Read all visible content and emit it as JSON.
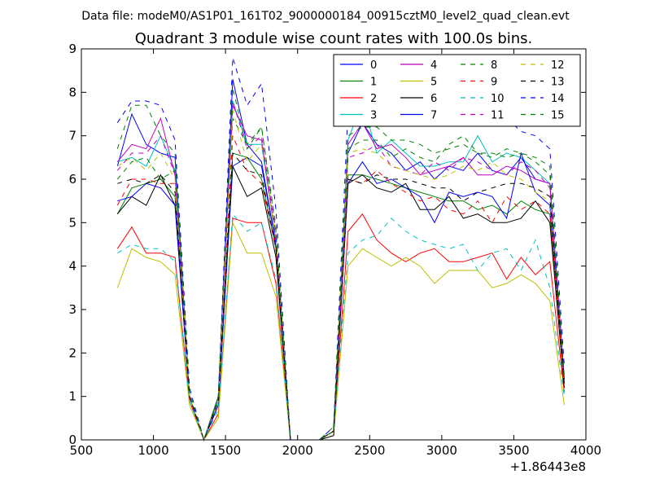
{
  "header": {
    "suptitle": "Data file: modeM0/AS1P01_161T02_9000000184_00915cztM0_level2_quad_clean.evt",
    "offset_label": "+1.86443e8"
  },
  "chart_data": {
    "type": "line",
    "title": "Quadrant 3 module wise count rates with 100.0s bins.",
    "xlabel": "",
    "ylabel": "",
    "xlim": [
      500,
      4000
    ],
    "ylim": [
      0,
      9
    ],
    "x_ticks": [
      "500",
      "1000",
      "1500",
      "2000",
      "2500",
      "3000",
      "3500",
      "4000"
    ],
    "y_ticks": [
      "0",
      "1",
      "2",
      "3",
      "4",
      "5",
      "6",
      "7",
      "8",
      "9"
    ],
    "x_offset": "+1.86443e8",
    "grid": false,
    "legend_position": "top-right",
    "legend_columns": 4,
    "x": [
      750,
      850,
      950,
      1050,
      1150,
      1250,
      1350,
      1450,
      1550,
      1650,
      1750,
      1850,
      1950,
      2050,
      2150,
      2250,
      2350,
      2450,
      2550,
      2650,
      2750,
      2850,
      2950,
      3050,
      3150,
      3250,
      3350,
      3450,
      3550,
      3650,
      3750,
      3850
    ],
    "series": [
      {
        "name": "0",
        "color": "#0000ff",
        "dash": "solid",
        "values": [
          6.3,
          7.5,
          6.8,
          6.6,
          6.5,
          1.0,
          0.0,
          1.0,
          8.3,
          6.8,
          6.4,
          4.5,
          0.0,
          0.0,
          0.0,
          0.2,
          6.6,
          7.3,
          6.8,
          6.6,
          6.2,
          6.4,
          6.0,
          6.3,
          6.2,
          6.6,
          6.2,
          6.1,
          6.5,
          6.0,
          5.9,
          1.4
        ]
      },
      {
        "name": "1",
        "color": "#008000",
        "dash": "solid",
        "values": [
          5.2,
          5.8,
          5.9,
          6.0,
          5.6,
          1.0,
          0.0,
          0.9,
          6.6,
          6.5,
          6.0,
          4.4,
          0.0,
          0.0,
          0.0,
          0.2,
          6.1,
          6.1,
          6.0,
          5.9,
          5.8,
          5.7,
          5.6,
          5.5,
          5.5,
          5.3,
          5.4,
          5.2,
          5.5,
          5.3,
          5.2,
          1.3
        ]
      },
      {
        "name": "2",
        "color": "#ff0000",
        "dash": "solid",
        "values": [
          4.4,
          4.9,
          4.3,
          4.3,
          4.2,
          0.9,
          0.0,
          0.6,
          5.1,
          5.0,
          5.0,
          3.6,
          0.0,
          0.0,
          0.0,
          0.2,
          4.8,
          5.2,
          4.6,
          4.3,
          4.1,
          4.3,
          4.4,
          4.1,
          4.1,
          4.2,
          4.3,
          3.7,
          4.2,
          3.8,
          4.1,
          1.1
        ]
      },
      {
        "name": "3",
        "color": "#00bfbf",
        "dash": "solid",
        "values": [
          6.4,
          6.5,
          6.3,
          7.0,
          6.2,
          1.0,
          0.0,
          1.0,
          7.8,
          6.8,
          6.8,
          4.6,
          0.0,
          0.0,
          0.0,
          0.2,
          6.9,
          7.8,
          6.6,
          6.9,
          6.6,
          6.3,
          6.3,
          6.4,
          6.4,
          7.0,
          6.4,
          6.6,
          6.5,
          6.2,
          5.9,
          1.3
        ]
      },
      {
        "name": "4",
        "color": "#bf00bf",
        "dash": "solid",
        "values": [
          6.4,
          6.8,
          6.7,
          7.4,
          6.1,
          1.0,
          0.0,
          1.0,
          7.7,
          7.0,
          6.9,
          4.6,
          0.0,
          0.0,
          0.0,
          0.2,
          6.8,
          7.3,
          6.7,
          6.8,
          6.5,
          6.1,
          6.2,
          6.3,
          6.5,
          6.1,
          6.1,
          6.3,
          6.2,
          6.0,
          5.9,
          1.4
        ]
      },
      {
        "name": "5",
        "color": "#bfbf00",
        "dash": "solid",
        "values": [
          3.5,
          4.4,
          4.2,
          4.1,
          3.8,
          0.8,
          0.0,
          0.5,
          5.0,
          4.3,
          4.3,
          3.3,
          0.0,
          0.0,
          0.0,
          0.1,
          4.0,
          4.4,
          4.2,
          4.0,
          4.2,
          4.0,
          3.6,
          3.9,
          3.9,
          3.9,
          3.5,
          3.6,
          3.8,
          3.6,
          3.2,
          0.8
        ]
      },
      {
        "name": "6",
        "color": "#000000",
        "dash": "solid",
        "values": [
          5.2,
          5.6,
          5.4,
          6.1,
          5.4,
          1.0,
          0.0,
          0.8,
          6.3,
          5.6,
          5.8,
          4.2,
          0.0,
          0.0,
          0.0,
          0.1,
          5.9,
          6.1,
          5.8,
          5.7,
          5.9,
          5.3,
          5.3,
          5.6,
          5.1,
          5.2,
          5.0,
          5.0,
          5.1,
          5.5,
          5.0,
          1.2
        ]
      },
      {
        "name": "7",
        "color": "#0000ff",
        "dash": "solid",
        "values": [
          5.5,
          5.6,
          5.9,
          5.8,
          5.4,
          1.0,
          0.0,
          0.8,
          6.3,
          6.5,
          6.3,
          4.5,
          0.0,
          0.0,
          0.0,
          0.2,
          5.9,
          6.4,
          5.9,
          6.0,
          5.8,
          5.6,
          5.0,
          5.7,
          5.6,
          5.7,
          5.6,
          5.1,
          6.6,
          5.7,
          5.4,
          1.4
        ]
      },
      {
        "name": "8",
        "color": "#008000",
        "dash": "dashed",
        "values": [
          6.0,
          6.4,
          6.5,
          6.0,
          6.2,
          1.0,
          0.0,
          1.0,
          7.4,
          6.8,
          7.2,
          4.8,
          0.0,
          0.0,
          0.0,
          0.3,
          6.7,
          6.9,
          6.9,
          6.5,
          6.7,
          6.5,
          6.4,
          6.8,
          7.0,
          6.6,
          6.5,
          6.7,
          6.6,
          6.5,
          6.3,
          1.5
        ]
      },
      {
        "name": "9",
        "color": "#ff0000",
        "dash": "dashed",
        "values": [
          5.4,
          6.0,
          6.0,
          5.9,
          5.9,
          1.0,
          0.0,
          0.9,
          7.0,
          6.2,
          5.9,
          4.4,
          0.0,
          0.0,
          0.0,
          0.2,
          6.0,
          5.9,
          6.2,
          5.9,
          5.7,
          5.5,
          5.6,
          5.3,
          5.2,
          5.5,
          5.0,
          5.6,
          5.3,
          5.5,
          5.2,
          1.3
        ]
      },
      {
        "name": "10",
        "color": "#00bfbf",
        "dash": "dashed",
        "values": [
          4.3,
          4.5,
          4.4,
          4.4,
          4.1,
          0.9,
          0.0,
          0.7,
          5.2,
          4.8,
          5.0,
          3.7,
          0.0,
          0.0,
          0.0,
          0.2,
          4.3,
          4.6,
          4.7,
          5.1,
          4.8,
          4.6,
          4.5,
          4.4,
          4.5,
          3.9,
          4.3,
          4.4,
          3.9,
          4.6,
          3.5,
          1.0
        ]
      },
      {
        "name": "11",
        "color": "#bf00bf",
        "dash": "dashed",
        "values": [
          6.2,
          6.6,
          6.6,
          7.0,
          6.1,
          1.0,
          0.0,
          0.9,
          7.8,
          6.7,
          7.0,
          4.7,
          0.0,
          0.0,
          0.0,
          0.2,
          6.5,
          6.6,
          6.8,
          6.3,
          6.2,
          6.1,
          6.4,
          6.2,
          6.5,
          6.4,
          6.2,
          6.1,
          6.4,
          6.2,
          5.8,
          1.4
        ]
      },
      {
        "name": "12",
        "color": "#bfbf00",
        "dash": "dashed",
        "values": [
          6.3,
          6.5,
          6.2,
          6.6,
          6.0,
          1.0,
          0.0,
          0.9,
          7.6,
          6.4,
          6.8,
          4.6,
          0.0,
          0.0,
          0.0,
          0.2,
          6.6,
          6.7,
          6.6,
          6.3,
          6.2,
          6.1,
          6.0,
          6.1,
          6.3,
          6.2,
          6.4,
          6.1,
          6.0,
          5.7,
          5.5,
          1.3
        ]
      },
      {
        "name": "13",
        "color": "#000000",
        "dash": "dashed",
        "values": [
          5.9,
          6.0,
          5.9,
          6.1,
          5.7,
          1.0,
          0.0,
          0.9,
          6.6,
          6.2,
          6.1,
          4.4,
          0.0,
          0.0,
          0.0,
          0.2,
          6.0,
          5.9,
          6.1,
          6.0,
          6.0,
          5.9,
          5.8,
          5.8,
          5.5,
          5.7,
          5.8,
          5.9,
          5.9,
          5.8,
          5.6,
          1.3
        ]
      },
      {
        "name": "14",
        "color": "#0000ff",
        "dash": "dashed",
        "values": [
          7.3,
          7.8,
          7.8,
          7.7,
          6.9,
          1.2,
          0.0,
          1.0,
          8.8,
          7.7,
          8.2,
          5.3,
          0.0,
          0.0,
          0.0,
          0.3,
          7.6,
          7.9,
          8.1,
          7.8,
          7.6,
          7.5,
          7.6,
          7.5,
          7.4,
          7.5,
          7.3,
          7.4,
          7.1,
          7.0,
          6.7,
          1.7
        ]
      },
      {
        "name": "15",
        "color": "#008000",
        "dash": "dashed",
        "values": [
          6.7,
          7.7,
          7.7,
          7.0,
          6.6,
          1.1,
          0.0,
          1.0,
          8.1,
          6.7,
          7.2,
          4.9,
          0.0,
          0.0,
          0.0,
          0.2,
          7.0,
          7.2,
          7.2,
          6.9,
          6.9,
          6.8,
          6.6,
          6.7,
          6.8,
          6.6,
          6.6,
          6.5,
          6.6,
          6.4,
          6.1,
          1.4
        ]
      }
    ]
  }
}
